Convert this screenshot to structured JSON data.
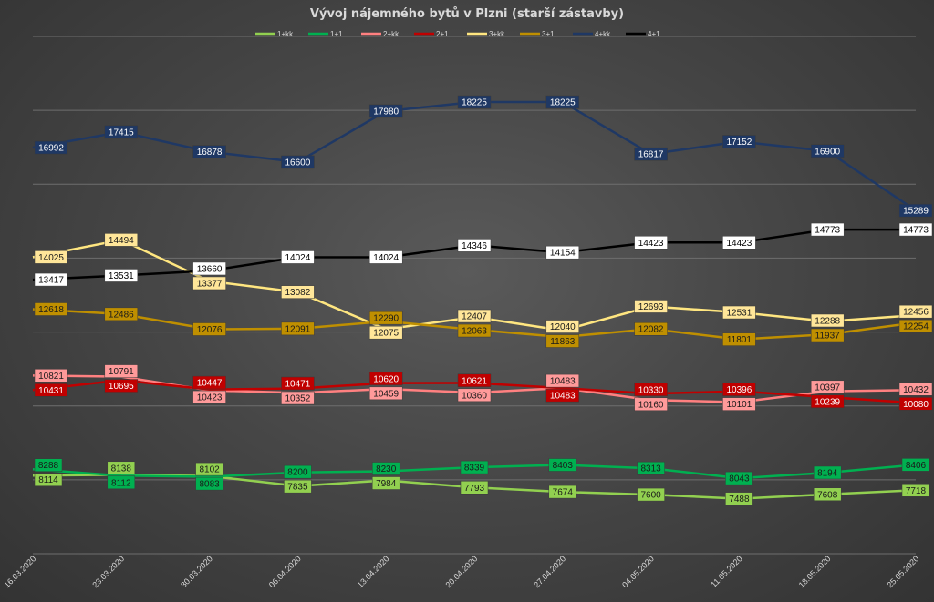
{
  "chart_data": {
    "type": "line",
    "title": "Vývoj nájemného bytů v Plzni (starší zástavby)",
    "xlabel": "",
    "ylabel": "",
    "x": [
      "16.03.2020",
      "23.03.2020",
      "30.03.2020",
      "06.04.2020",
      "13.04.2020",
      "20.04.2020",
      "27.04.2020",
      "04.05.2020",
      "11.05.2020",
      "18.05.2020",
      "25.05.2020"
    ],
    "ylim": [
      6000,
      20000
    ],
    "grid": true,
    "legend": "top-center",
    "series": [
      {
        "name": "1+kk",
        "color": "#92d050",
        "label_bg": "#92d050",
        "label_fg": "#1a1a1a",
        "values": [
          8114,
          8138,
          8102,
          7835,
          7984,
          7793,
          7674,
          7600,
          7488,
          7608,
          7718
        ]
      },
      {
        "name": "1+1",
        "color": "#00b050",
        "label_bg": "#00b050",
        "label_fg": "#1a1a1a",
        "values": [
          8288,
          8112,
          8083,
          8200,
          8230,
          8339,
          8403,
          8313,
          8043,
          8194,
          8406
        ]
      },
      {
        "name": "2+kk",
        "color": "#ff8080",
        "label_bg": "#ff9a9a",
        "label_fg": "#1a1a1a",
        "values": [
          10821,
          10791,
          10423,
          10352,
          10459,
          10360,
          10483,
          10160,
          10101,
          10397,
          10432
        ]
      },
      {
        "name": "2+1",
        "color": "#c00000",
        "label_bg": "#c00000",
        "label_fg": "#ffffff",
        "values": [
          10431,
          10695,
          10447,
          10471,
          10620,
          10621,
          10483,
          10330,
          10396,
          10239,
          10080
        ]
      },
      {
        "name": "3+kk",
        "color": "#ffe680",
        "label_bg": "#ffe699",
        "label_fg": "#1a1a1a",
        "values": [
          14025,
          14494,
          13377,
          13082,
          12075,
          12407,
          12040,
          12693,
          12531,
          12288,
          12456
        ]
      },
      {
        "name": "3+1",
        "color": "#bf8f00",
        "label_bg": "#bf8f00",
        "label_fg": "#1a1a1a",
        "values": [
          12618,
          12486,
          12076,
          12091,
          12290,
          12063,
          11863,
          12082,
          11801,
          11937,
          12254
        ]
      },
      {
        "name": "4+kk",
        "color": "#1f3864",
        "label_bg": "#1f3864",
        "label_fg": "#ffffff",
        "values": [
          16992,
          17415,
          16878,
          16600,
          17980,
          18225,
          18225,
          16817,
          17152,
          16900,
          15289
        ]
      },
      {
        "name": "4+1",
        "color": "#000000",
        "label_bg": "#ffffff",
        "label_fg": "#000000",
        "values": [
          13417,
          13531,
          13660,
          14024,
          14024,
          14346,
          14154,
          14423,
          14423,
          14773,
          14773
        ]
      }
    ]
  }
}
